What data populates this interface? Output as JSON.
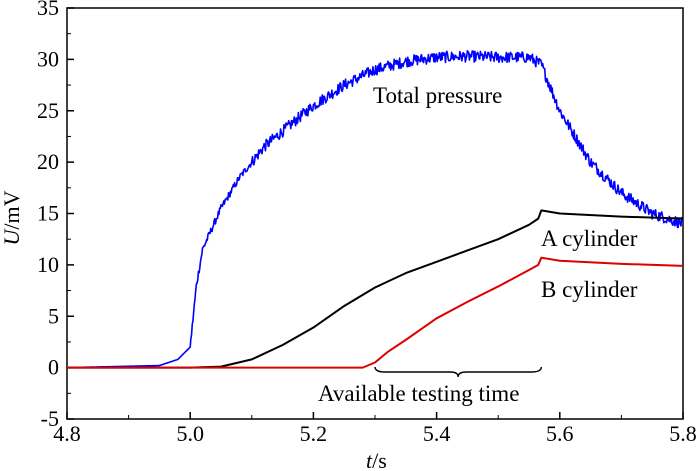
{
  "chart_data": {
    "type": "line",
    "xlabel_italic": "t",
    "xlabel_unit": "/s",
    "ylabel_italic": "U",
    "ylabel_unit": "/mV",
    "xlim": [
      4.8,
      5.8
    ],
    "ylim": [
      -5,
      35
    ],
    "x_ticks": [
      "4.8",
      "5.0",
      "5.2",
      "5.4",
      "5.6",
      "5.8"
    ],
    "y_ticks": [
      "-5",
      "0",
      "5",
      "10",
      "15",
      "20",
      "25",
      "30",
      "35"
    ],
    "grid": false,
    "series": [
      {
        "name": "Total pressure",
        "color": "#0000ff",
        "noisy": true,
        "x": [
          4.8,
          4.95,
          4.98,
          5.0,
          5.01,
          5.02,
          5.05,
          5.08,
          5.12,
          5.16,
          5.2,
          5.25,
          5.3,
          5.35,
          5.4,
          5.45,
          5.5,
          5.55,
          5.57,
          5.6,
          5.65,
          5.7,
          5.75,
          5.8
        ],
        "y": [
          0,
          0.2,
          0.8,
          2,
          8,
          11.5,
          15.5,
          18.5,
          21.5,
          23.5,
          25.5,
          27.5,
          29,
          29.8,
          30.2,
          30.3,
          30.2,
          30.2,
          29.5,
          25,
          20,
          17,
          15,
          14
        ]
      },
      {
        "name": "A cylinder",
        "color": "#000000",
        "noisy": false,
        "x": [
          4.8,
          5.0,
          5.05,
          5.1,
          5.15,
          5.2,
          5.25,
          5.3,
          5.35,
          5.4,
          5.45,
          5.5,
          5.55,
          5.565,
          5.57,
          5.6,
          5.7,
          5.8
        ],
        "y": [
          0,
          0,
          0.1,
          0.8,
          2.2,
          3.9,
          6.0,
          7.8,
          9.2,
          10.3,
          11.4,
          12.5,
          13.9,
          14.5,
          15.3,
          15.0,
          14.7,
          14.5
        ]
      },
      {
        "name": "B cylinder",
        "color": "#dd0000",
        "noisy": false,
        "x": [
          4.8,
          5.28,
          5.3,
          5.32,
          5.35,
          5.4,
          5.45,
          5.5,
          5.55,
          5.565,
          5.57,
          5.6,
          5.7,
          5.8
        ],
        "y": [
          0,
          0,
          0.5,
          1.5,
          2.7,
          4.8,
          6.4,
          7.9,
          9.5,
          10.0,
          10.7,
          10.4,
          10.1,
          9.9
        ]
      }
    ],
    "annotations": {
      "total_pressure": "Total pressure",
      "a_cylinder": "A cylinder",
      "b_cylinder": "B cylinder",
      "testing_time": "Available testing time"
    },
    "testing_window": [
      5.3,
      5.57
    ]
  }
}
